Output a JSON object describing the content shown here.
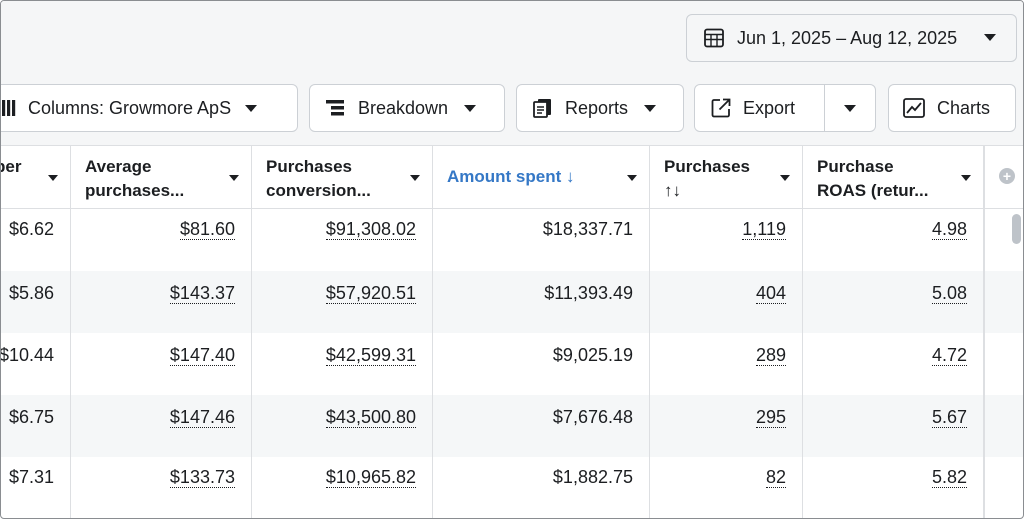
{
  "date_range": {
    "label": "Jun 1, 2025 – Aug 12, 2025"
  },
  "toolbar": {
    "columns_label": "Columns: Growmore ApS",
    "breakdown_label": "Breakdown",
    "reports_label": "Reports",
    "export_label": "Export",
    "charts_label": "Charts"
  },
  "table": {
    "headers": [
      {
        "line1": "per",
        "line2": ""
      },
      {
        "line1": "Average",
        "line2": "purchases..."
      },
      {
        "line1": "Purchases",
        "line2": "conversion..."
      },
      {
        "line1": "Amount spent ↓",
        "line2": ""
      },
      {
        "line1": "Purchases",
        "line2": "↑↓"
      },
      {
        "line1": "Purchase",
        "line2": "ROAS (retur..."
      }
    ],
    "rows": [
      [
        "$6.62",
        "$81.60",
        "$91,308.02",
        "$18,337.71",
        "1,119",
        "4.98"
      ],
      [
        "$5.86",
        "$143.37",
        "$57,920.51",
        "$11,393.49",
        "404",
        "5.08"
      ],
      [
        "$10.44",
        "$147.40",
        "$42,599.31",
        "$9,025.19",
        "289",
        "4.72"
      ],
      [
        "$6.75",
        "$147.46",
        "$43,500.80",
        "$7,676.48",
        "295",
        "5.67"
      ],
      [
        "$7.31",
        "$133.73",
        "$10,965.82",
        "$1,882.75",
        "82",
        "5.82"
      ]
    ]
  }
}
